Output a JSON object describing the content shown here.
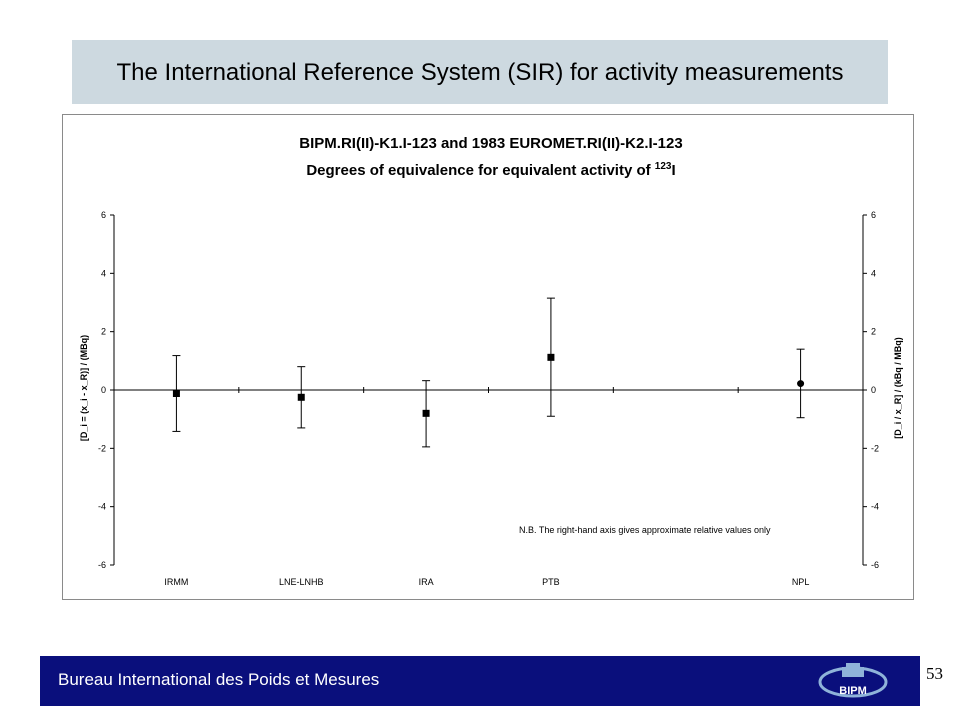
{
  "slide": {
    "title": "The International Reference System (SIR) for activity measurements",
    "footer_text": "Bureau International des Poids et Mesures",
    "logo_text": "BIPM",
    "page_number": "53"
  },
  "chart_data": {
    "type": "scatter",
    "title": "BIPM.RI(II)-K1.I-123 and 1983 EUROMET.RI(II)-K2.I-123",
    "subtitle_prefix": "Degrees of equivalence for equivalent activity of ",
    "subtitle_superscript": "123",
    "subtitle_suffix": "I",
    "ylabel_left": "[D_i = (x_i - x_R)] / (MBq)",
    "ylabel_right": "[D_i / x_R] / (kBq / MBq)",
    "ylim": [
      -6,
      6
    ],
    "yticks": [
      -6,
      -4,
      -2,
      0,
      2,
      4,
      6
    ],
    "y2lim": [
      -6,
      6
    ],
    "y2ticks": [
      -6,
      -4,
      -2,
      0,
      2,
      4,
      6
    ],
    "categories": [
      "IRMM",
      "LNE-LNHB",
      "IRA",
      "PTB",
      "",
      "NPL"
    ],
    "points": [
      {
        "label": "IRMM",
        "value": -0.12,
        "lower": -1.42,
        "upper": 1.18,
        "marker": "square"
      },
      {
        "label": "LNE-LNHB",
        "value": -0.25,
        "lower": -1.3,
        "upper": 0.8,
        "marker": "square"
      },
      {
        "label": "IRA",
        "value": -0.8,
        "lower": -1.95,
        "upper": 0.32,
        "marker": "square"
      },
      {
        "label": "PTB",
        "value": 1.12,
        "lower": -0.9,
        "upper": 3.15,
        "marker": "square"
      },
      {
        "label": "NPL",
        "value": 0.22,
        "lower": -0.95,
        "upper": 1.4,
        "marker": "circle"
      }
    ],
    "annotation": "N.B. The right-hand axis gives approximate relative values only",
    "grid": false,
    "colors": {
      "marker": "#000000",
      "axis": "#000000",
      "title_bar": "#cdd9e0",
      "footer": "#0a0f7c"
    }
  }
}
